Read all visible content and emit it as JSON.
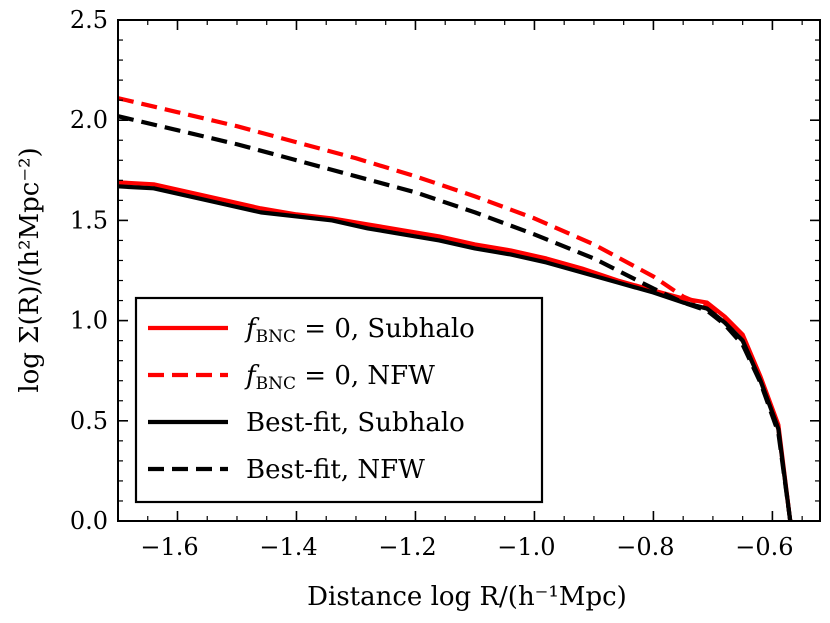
{
  "chart_data": {
    "type": "line",
    "title": "",
    "xlabel": "Distance log R/(h⁻¹Mpc)",
    "ylabel": "log Σ(R)/(h²Mpc⁻²)",
    "xlim": [
      -1.7,
      -0.52
    ],
    "ylim": [
      0.0,
      2.5
    ],
    "xticks": [
      -1.6,
      -1.4,
      -1.2,
      -1.0,
      -0.8,
      -0.6
    ],
    "xtick_labels": [
      "−1.6",
      "−1.4",
      "−1.2",
      "−1.0",
      "−0.8",
      "−0.6"
    ],
    "yticks": [
      0.0,
      0.5,
      1.0,
      1.5,
      2.0,
      2.5
    ],
    "ytick_labels": [
      "0.0",
      "0.5",
      "1.0",
      "1.5",
      "2.0",
      "2.5"
    ],
    "legend_position": "lower-left",
    "series": [
      {
        "name": "f_BNC = 0, Subhalo",
        "label_main": "f",
        "label_sub": "BNC",
        "label_rest": " = 0, Subhalo",
        "color": "#ff0000",
        "dash": "solid",
        "x": [
          -1.7,
          -1.64,
          -1.58,
          -1.52,
          -1.46,
          -1.4,
          -1.34,
          -1.28,
          -1.22,
          -1.16,
          -1.1,
          -1.04,
          -0.98,
          -0.92,
          -0.86,
          -0.8,
          -0.75,
          -0.71,
          -0.68,
          -0.65,
          -0.62,
          -0.59,
          -0.57
        ],
        "y": [
          1.69,
          1.68,
          1.64,
          1.6,
          1.56,
          1.53,
          1.51,
          1.48,
          1.45,
          1.42,
          1.38,
          1.35,
          1.31,
          1.26,
          1.2,
          1.15,
          1.11,
          1.09,
          1.02,
          0.93,
          0.72,
          0.48,
          0.0
        ]
      },
      {
        "name": "f_BNC = 0, NFW",
        "label_main": "f",
        "label_sub": "BNC",
        "label_rest": " = 0, NFW",
        "color": "#ff0000",
        "dash": "dashed",
        "x": [
          -1.7,
          -1.6,
          -1.5,
          -1.4,
          -1.3,
          -1.2,
          -1.1,
          -1.0,
          -0.9,
          -0.8,
          -0.75,
          -0.71,
          -0.68,
          -0.65,
          -0.62,
          -0.59,
          -0.57
        ],
        "y": [
          2.11,
          2.04,
          1.97,
          1.89,
          1.81,
          1.72,
          1.62,
          1.51,
          1.38,
          1.22,
          1.12,
          1.07,
          1.0,
          0.9,
          0.71,
          0.46,
          0.0
        ]
      },
      {
        "name": "Best-fit, Subhalo",
        "label_main": "",
        "label_sub": "",
        "label_rest": "Best-fit, Subhalo",
        "color": "#000000",
        "dash": "solid",
        "x": [
          -1.7,
          -1.64,
          -1.58,
          -1.52,
          -1.46,
          -1.4,
          -1.34,
          -1.28,
          -1.22,
          -1.16,
          -1.1,
          -1.04,
          -0.98,
          -0.92,
          -0.86,
          -0.8,
          -0.75,
          -0.71,
          -0.68,
          -0.65,
          -0.62,
          -0.59,
          -0.57
        ],
        "y": [
          1.67,
          1.66,
          1.62,
          1.58,
          1.54,
          1.52,
          1.5,
          1.46,
          1.43,
          1.4,
          1.36,
          1.33,
          1.29,
          1.24,
          1.19,
          1.14,
          1.09,
          1.06,
          0.99,
          0.9,
          0.7,
          0.46,
          0.0
        ]
      },
      {
        "name": "Best-fit, NFW",
        "label_main": "",
        "label_sub": "",
        "label_rest": "Best-fit, NFW",
        "color": "#000000",
        "dash": "dashed",
        "x": [
          -1.7,
          -1.6,
          -1.5,
          -1.4,
          -1.3,
          -1.2,
          -1.1,
          -1.0,
          -0.9,
          -0.8,
          -0.75,
          -0.71,
          -0.68,
          -0.65,
          -0.62,
          -0.59,
          -0.57
        ],
        "y": [
          2.02,
          1.95,
          1.88,
          1.8,
          1.72,
          1.64,
          1.54,
          1.43,
          1.31,
          1.16,
          1.09,
          1.05,
          0.98,
          0.88,
          0.69,
          0.44,
          0.0
        ]
      }
    ]
  }
}
